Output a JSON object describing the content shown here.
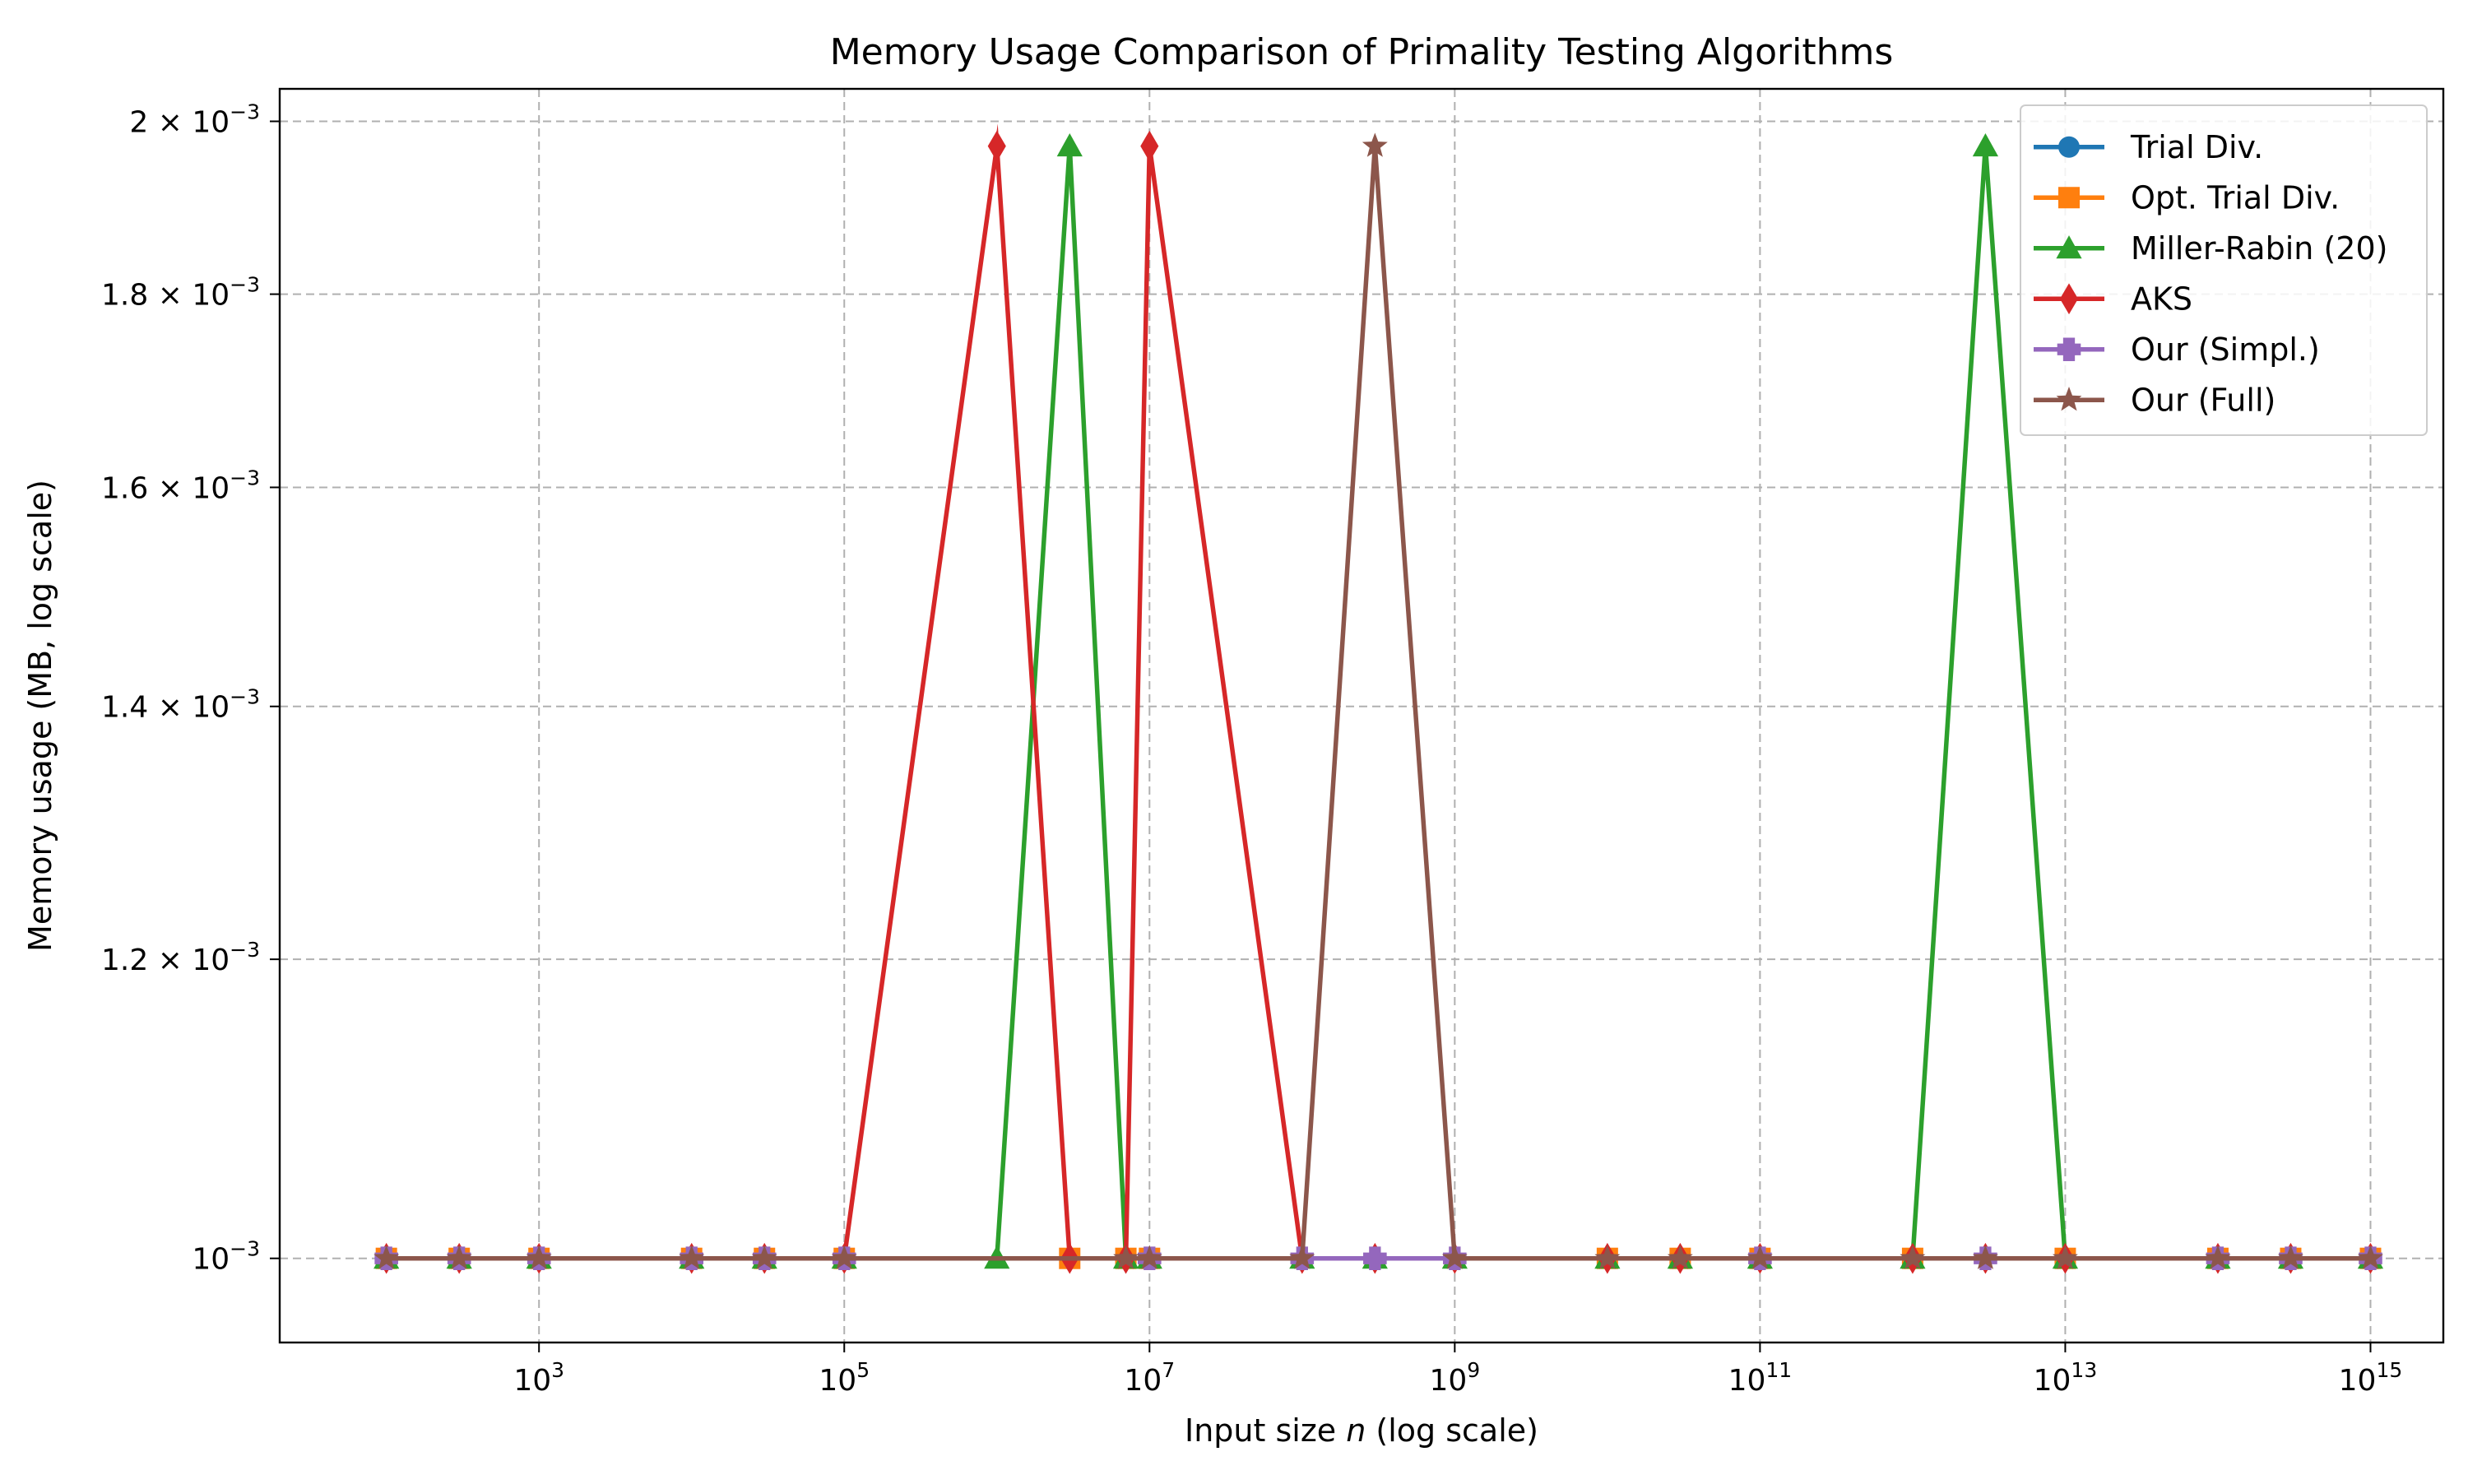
{
  "chart_data": {
    "type": "line",
    "title": "Memory Usage Comparison of Primality Testing Algorithms",
    "xlabel": "Input size n (log scale)",
    "ylabel": "Memory usage (MB, log scale)",
    "xscale": "log",
    "yscale": "log",
    "xlim": [
      20,
      3000000000000000
    ],
    "ylim": [
      0.00095,
      0.00204
    ],
    "grid": true,
    "legend_position": "top-right",
    "x_ticks": [
      {
        "value": 1000,
        "base": "10",
        "exp": "3"
      },
      {
        "value": 100000,
        "base": "10",
        "exp": "5"
      },
      {
        "value": 10000000,
        "base": "10",
        "exp": "7"
      },
      {
        "value": 1000000000,
        "base": "10",
        "exp": "9"
      },
      {
        "value": 100000000000,
        "base": "10",
        "exp": "11"
      },
      {
        "value": 10000000000000,
        "base": "10",
        "exp": "13"
      },
      {
        "value": 1000000000000000,
        "base": "10",
        "exp": "15"
      }
    ],
    "y_ticks": [
      {
        "value": 0.001,
        "mant": "",
        "base": "10",
        "exp": "−3"
      },
      {
        "value": 0.0012,
        "mant": "1.2 × ",
        "base": "10",
        "exp": "−3"
      },
      {
        "value": 0.0014,
        "mant": "1.4 × ",
        "base": "10",
        "exp": "−3"
      },
      {
        "value": 0.0016,
        "mant": "1.6 × ",
        "base": "10",
        "exp": "−3"
      },
      {
        "value": 0.0018,
        "mant": "1.8 × ",
        "base": "10",
        "exp": "−3"
      },
      {
        "value": 0.002,
        "mant": "2 × ",
        "base": "10",
        "exp": "−3"
      }
    ],
    "series": [
      {
        "name": "Trial Div.",
        "color": "#1f77b4",
        "marker": "circle",
        "x": [
          100,
          300,
          1000,
          10000,
          30000,
          100000,
          10000000,
          100000000000,
          100000000000000,
          300000000000000,
          1000000000000000
        ],
        "values": [
          0.001,
          0.001,
          0.001,
          0.001,
          0.001,
          0.001,
          0.001,
          0.001,
          0.001,
          0.001,
          0.001
        ]
      },
      {
        "name": "Opt. Trial Div.",
        "color": "#ff7f0e",
        "marker": "square",
        "x": [
          100,
          300,
          1000,
          10000,
          30000,
          100000,
          3000000,
          7000000,
          10000000,
          10000000000,
          30000000000,
          100000000000,
          1000000000000,
          10000000000000,
          100000000000000,
          300000000000000,
          1000000000000000
        ],
        "values": [
          0.001,
          0.001,
          0.001,
          0.001,
          0.001,
          0.001,
          0.001,
          0.001,
          0.001,
          0.001,
          0.001,
          0.001,
          0.001,
          0.001,
          0.001,
          0.001,
          0.001
        ]
      },
      {
        "name": "Miller-Rabin (20)",
        "color": "#2ca02c",
        "marker": "triangle",
        "x": [
          100,
          300,
          1000,
          10000,
          30000,
          100000,
          1000000,
          3000000,
          7000000,
          10000000,
          100000000,
          300000000,
          1000000000,
          10000000000,
          30000000000,
          100000000000,
          1000000000000,
          3000000000000,
          10000000000000,
          100000000000000,
          300000000000000,
          1000000000000000
        ],
        "values": [
          0.001,
          0.001,
          0.001,
          0.001,
          0.001,
          0.001,
          0.001,
          0.00197,
          0.001,
          0.001,
          0.001,
          0.001,
          0.001,
          0.001,
          0.001,
          0.001,
          0.001,
          0.00197,
          0.001,
          0.001,
          0.001,
          0.001
        ]
      },
      {
        "name": "AKS",
        "color": "#d62728",
        "marker": "diamond",
        "x": [
          100,
          300,
          1000,
          10000,
          30000,
          100000,
          1000000,
          3000000,
          7000000,
          10000000,
          100000000,
          300000000,
          1000000000,
          10000000000,
          30000000000,
          100000000000,
          1000000000000,
          3000000000000,
          10000000000000,
          100000000000000,
          300000000000000,
          1000000000000000
        ],
        "values": [
          0.001,
          0.001,
          0.001,
          0.001,
          0.001,
          0.001,
          0.00197,
          0.001,
          0.001,
          0.00197,
          0.001,
          0.001,
          0.001,
          0.001,
          0.001,
          0.001,
          0.001,
          0.001,
          0.001,
          0.001,
          0.001,
          0.001
        ]
      },
      {
        "name": "Our (Simpl.)",
        "color": "#9467bd",
        "marker": "plus",
        "x": [
          100,
          300,
          1000,
          10000,
          30000,
          100000,
          10000000,
          100000000,
          300000000,
          1000000000,
          100000000000,
          3000000000000,
          100000000000000,
          300000000000000,
          1000000000000000
        ],
        "values": [
          0.001,
          0.001,
          0.001,
          0.001,
          0.001,
          0.001,
          0.001,
          0.001,
          0.001,
          0.001,
          0.001,
          0.001,
          0.001,
          0.001,
          0.001
        ]
      },
      {
        "name": "Our (Full)",
        "color": "#8c564b",
        "marker": "star",
        "x": [
          100,
          300,
          1000,
          10000,
          30000,
          100000,
          7000000,
          10000000,
          100000000,
          300000000,
          1000000000,
          10000000000,
          30000000000,
          100000000000,
          1000000000000,
          3000000000000,
          10000000000000,
          100000000000000,
          300000000000000,
          1000000000000000
        ],
        "values": [
          0.001,
          0.001,
          0.001,
          0.001,
          0.001,
          0.001,
          0.001,
          0.001,
          0.001,
          0.00197,
          0.001,
          0.001,
          0.001,
          0.001,
          0.001,
          0.001,
          0.001,
          0.001,
          0.001,
          0.001
        ]
      }
    ]
  }
}
